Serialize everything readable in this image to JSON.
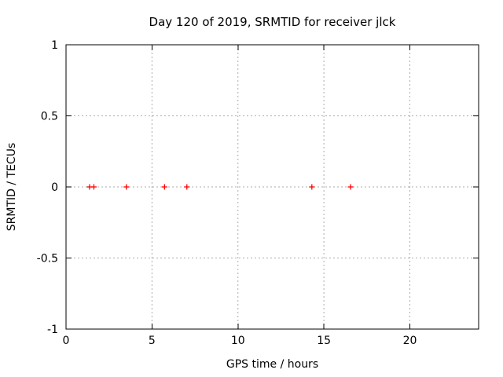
{
  "window": {
    "title": "Day 120 of 2019, SRMTID for receiver jlck"
  },
  "chart_data": {
    "type": "scatter",
    "title": "Day 120 of 2019, SRMTID for receiver jlck",
    "xlabel": "GPS time / hours",
    "ylabel": "SRMTID / TECUs",
    "x": [
      1.37,
      1.62,
      3.51,
      5.73,
      7.03,
      14.3,
      16.55
    ],
    "y": [
      0,
      0,
      0,
      0,
      0,
      0,
      0
    ],
    "xlim": [
      0,
      24
    ],
    "ylim": [
      -1,
      1
    ],
    "xticks": [
      0,
      5,
      10,
      15,
      20
    ],
    "xtick_labels": [
      "0",
      "5",
      "10",
      "15",
      "20"
    ],
    "yticks": [
      -1,
      -0.5,
      0,
      0.5,
      1
    ],
    "ytick_labels": [
      "-1",
      "-0.5",
      "0",
      "0.5",
      "1"
    ],
    "marker": "plus",
    "grid": true,
    "grid_style": "dotted",
    "legend": "none",
    "colors": {
      "marker": "#ff0000",
      "grid": "#ababab",
      "axis": "#000000",
      "background": "#ffffff"
    }
  }
}
